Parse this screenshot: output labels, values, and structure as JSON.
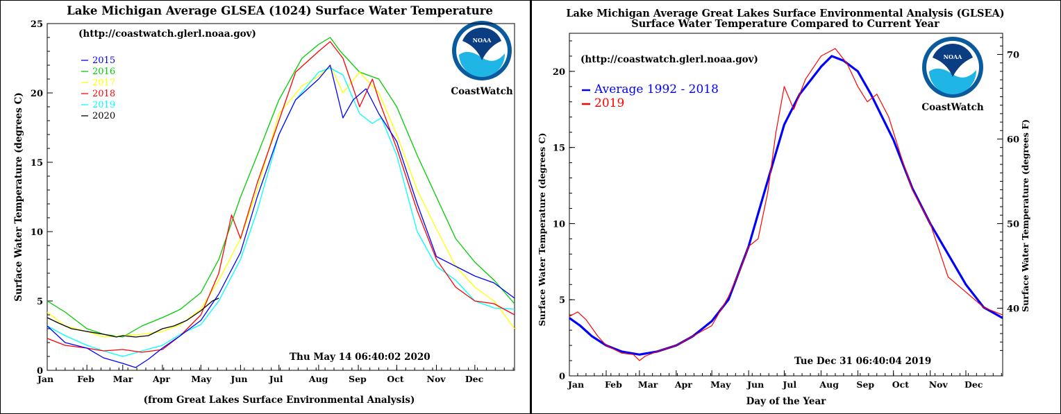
{
  "chart_data": [
    {
      "type": "line",
      "title": "Lake Michigan Average GLSEA (1024) Surface Water Temperature",
      "subtitle": "(http://coastwatch.glerl.noaa.gov)",
      "ylabel": "Surface Water Temperature (degrees C)",
      "xlabel": "(from Great Lakes Surface Environmental Analysis)",
      "timestamp": "Thu May 14 06:40:02 2020",
      "logo_text": "CoastWatch",
      "logo_inner_text": "NOAA",
      "ylim": [
        0,
        25
      ],
      "xlim": [
        1,
        366
      ],
      "y_ticks": [
        "0",
        "5",
        "10",
        "15",
        "20",
        "25"
      ],
      "x_tick_labels": [
        "Jan",
        "Feb",
        "Mar",
        "Apr",
        "May",
        "Jun",
        "Jul",
        "Aug",
        "Sep",
        "Oct",
        "Nov",
        "Dec"
      ],
      "x_tick_days": [
        1,
        32,
        60,
        91,
        121,
        152,
        182,
        213,
        244,
        274,
        305,
        335
      ],
      "legend_position": "top-left",
      "series": [
        {
          "name": "2015",
          "color": "#0000ff",
          "x": [
            1,
            15,
            32,
            45,
            60,
            70,
            80,
            91,
            105,
            121,
            135,
            152,
            165,
            182,
            195,
            213,
            222,
            232,
            240,
            250,
            260,
            274,
            290,
            305,
            320,
            335,
            350,
            366
          ],
          "y": [
            3.2,
            2.0,
            1.6,
            0.9,
            0.5,
            0.2,
            0.8,
            1.6,
            2.5,
            3.6,
            5.5,
            8.5,
            12.5,
            17.0,
            19.5,
            21.0,
            22.0,
            18.2,
            19.5,
            20.3,
            18.5,
            16.5,
            12.0,
            8.2,
            7.5,
            6.8,
            6.3,
            5.2
          ]
        },
        {
          "name": "2016",
          "color": "#00cc00",
          "x": [
            1,
            15,
            32,
            45,
            60,
            75,
            91,
            105,
            121,
            135,
            152,
            165,
            182,
            200,
            213,
            222,
            230,
            245,
            260,
            274,
            290,
            305,
            320,
            335,
            350,
            366
          ],
          "y": [
            5.0,
            4.2,
            3.0,
            2.6,
            2.4,
            3.2,
            3.8,
            4.4,
            5.6,
            8.0,
            12.5,
            15.5,
            19.5,
            22.5,
            23.5,
            24.0,
            23.0,
            21.5,
            21.0,
            19.0,
            15.5,
            12.5,
            9.5,
            7.8,
            6.5,
            4.8
          ]
        },
        {
          "name": "2017",
          "color": "#ffff00",
          "x": [
            1,
            15,
            32,
            45,
            60,
            75,
            91,
            105,
            121,
            135,
            152,
            165,
            182,
            200,
            213,
            222,
            232,
            245,
            260,
            274,
            290,
            305,
            320,
            335,
            350,
            366
          ],
          "y": [
            4.2,
            3.2,
            2.8,
            2.4,
            2.5,
            2.6,
            2.8,
            3.3,
            4.4,
            6.5,
            9.5,
            13.0,
            18.5,
            20.5,
            21.2,
            22.0,
            20.0,
            21.5,
            20.0,
            17.0,
            13.0,
            10.2,
            7.5,
            6.0,
            5.0,
            3.0
          ]
        },
        {
          "name": "2018",
          "color": "#ff0000",
          "x": [
            1,
            15,
            32,
            45,
            60,
            75,
            91,
            105,
            121,
            135,
            145,
            152,
            165,
            182,
            195,
            213,
            222,
            232,
            245,
            255,
            260,
            274,
            290,
            305,
            320,
            335,
            350,
            366
          ],
          "y": [
            2.3,
            1.8,
            1.6,
            1.4,
            1.5,
            1.3,
            1.5,
            2.5,
            4.0,
            7.0,
            11.2,
            9.5,
            13.5,
            18.0,
            21.5,
            23.0,
            23.7,
            22.5,
            19.0,
            21.0,
            19.5,
            16.0,
            11.5,
            8.0,
            6.0,
            5.0,
            4.8,
            4.0
          ]
        },
        {
          "name": "2019",
          "color": "#00ffff",
          "x": [
            1,
            15,
            32,
            45,
            60,
            75,
            91,
            105,
            121,
            135,
            152,
            165,
            182,
            195,
            213,
            222,
            232,
            245,
            255,
            262,
            274,
            290,
            305,
            320,
            335,
            350,
            366
          ],
          "y": [
            3.2,
            2.5,
            1.8,
            1.4,
            1.0,
            1.4,
            1.8,
            2.6,
            3.3,
            5.0,
            8.0,
            11.5,
            17.0,
            19.5,
            21.5,
            21.8,
            21.3,
            18.5,
            17.8,
            18.2,
            15.5,
            10.0,
            7.5,
            6.5,
            5.0,
            4.5,
            4.4
          ]
        },
        {
          "name": "2020",
          "color": "#000000",
          "x": [
            1,
            10,
            20,
            32,
            45,
            55,
            60,
            70,
            80,
            91,
            100,
            110,
            121,
            130,
            135
          ],
          "y": [
            3.8,
            3.4,
            3.0,
            2.8,
            2.6,
            2.4,
            2.5,
            2.4,
            2.5,
            3.0,
            3.2,
            3.6,
            4.3,
            5.0,
            5.2
          ]
        }
      ]
    },
    {
      "type": "line",
      "title": "Lake Michigan Average Great Lakes Surface Environmental Analysis (GLSEA)",
      "subtitle": "Surface Water Temperature Compared to Current Year",
      "url": "(http://coastwatch.glerl.noaa.gov)",
      "ylabel": "Surface Water Temperature (degrees C)",
      "ylabel_right": "Surface Water Temperature (degrees F)",
      "xlabel": "Day of the Year",
      "timestamp": "Tue Dec 31 06:40:04 2019",
      "logo_text": "CoastWatch",
      "logo_inner_text": "NOAA",
      "ylim": [
        0,
        22.5
      ],
      "xlim": [
        1,
        366
      ],
      "y_ticks": [
        "0",
        "5",
        "10",
        "15",
        "20"
      ],
      "y_ticks_right": [
        "40",
        "50",
        "60",
        "70"
      ],
      "x_tick_labels": [
        "Jan",
        "Feb",
        "Mar",
        "Apr",
        "May",
        "Jun",
        "Jul",
        "Aug",
        "Sep",
        "Oct",
        "Nov",
        "Dec"
      ],
      "x_tick_days": [
        1,
        32,
        60,
        91,
        121,
        152,
        182,
        213,
        244,
        274,
        305,
        335
      ],
      "legend_position": "top-left",
      "series": [
        {
          "name": "Average 1992 - 2018",
          "color": "#0000ff",
          "x": [
            1,
            10,
            20,
            32,
            45,
            60,
            75,
            91,
            105,
            121,
            135,
            152,
            165,
            182,
            195,
            205,
            213,
            222,
            232,
            244,
            255,
            274,
            290,
            305,
            320,
            335,
            350,
            366
          ],
          "y": [
            3.8,
            3.3,
            2.6,
            2.0,
            1.6,
            1.4,
            1.6,
            2.0,
            2.6,
            3.6,
            5.0,
            8.5,
            12.0,
            16.5,
            18.5,
            19.5,
            20.3,
            21.0,
            20.7,
            20.0,
            18.5,
            15.5,
            12.3,
            10.0,
            8.0,
            6.0,
            4.5,
            3.8
          ]
        },
        {
          "name": "2019",
          "color": "#ff0000",
          "x": [
            1,
            8,
            15,
            25,
            32,
            45,
            55,
            60,
            65,
            75,
            91,
            105,
            121,
            135,
            145,
            152,
            160,
            168,
            175,
            182,
            190,
            200,
            213,
            225,
            235,
            244,
            252,
            260,
            270,
            280,
            290,
            305,
            320,
            335,
            350,
            366
          ],
          "y": [
            3.9,
            4.2,
            3.7,
            2.6,
            2.0,
            1.5,
            1.4,
            1.0,
            1.3,
            1.6,
            2.0,
            2.6,
            3.3,
            5.2,
            7.0,
            8.5,
            9.0,
            12.0,
            16.0,
            19.0,
            17.5,
            19.5,
            21.0,
            21.5,
            20.5,
            19.0,
            18.0,
            18.5,
            17.0,
            14.5,
            12.2,
            10.0,
            6.5,
            5.5,
            4.5,
            4.0
          ]
        }
      ]
    }
  ]
}
